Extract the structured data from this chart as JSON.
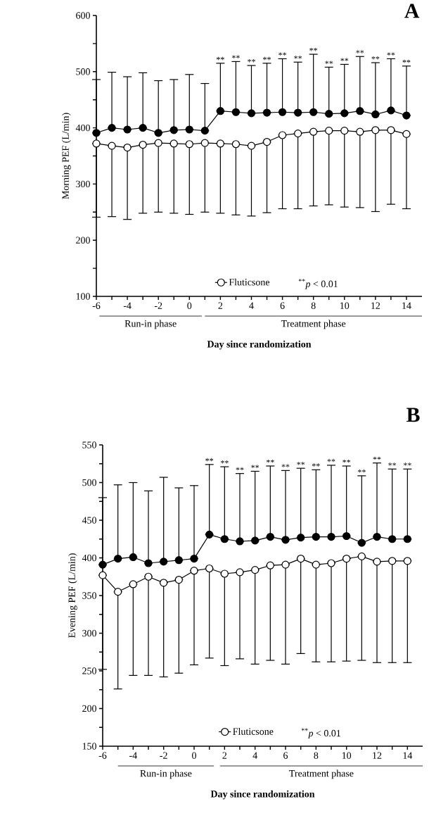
{
  "chart_data": [
    {
      "type": "line",
      "title": "A",
      "xlabel": "Day since randomization",
      "ylabel": "Morning PEF (L/min)",
      "marker": "circle",
      "line_style": "solid",
      "legend": "bottom",
      "x": [
        -6,
        -5,
        -4,
        -3,
        -2,
        -1,
        0,
        1,
        2,
        3,
        4,
        5,
        6,
        7,
        8,
        9,
        10,
        11,
        12,
        13,
        14
      ],
      "xlim": [
        -6,
        15
      ],
      "ylim": [
        100,
        600
      ],
      "xticks": [
        -6,
        {
          "value": -5,
          "label": null
        },
        -4,
        {
          "value": -3,
          "label": null
        },
        -2,
        {
          "value": -1,
          "label": null
        },
        0,
        {
          "value": 1,
          "label": null
        },
        2,
        {
          "value": 3,
          "label": null
        },
        4,
        {
          "value": 5,
          "label": null
        },
        6,
        {
          "value": 7,
          "label": null
        },
        8,
        {
          "value": 9,
          "label": null
        },
        10,
        {
          "value": 11,
          "label": null
        },
        12,
        {
          "value": 13,
          "label": null
        },
        14
      ],
      "yticks": [
        100,
        {
          "value": 150,
          "label": null
        },
        200,
        {
          "value": 250,
          "label": null
        },
        300,
        {
          "value": 350,
          "label": null
        },
        400,
        {
          "value": 450,
          "label": null
        },
        500,
        {
          "value": 550,
          "label": null
        },
        600
      ],
      "series": [
        {
          "color": "#000000",
          "values": [
            391,
            400,
            397,
            400,
            391,
            396,
            397,
            395,
            430,
            428,
            426,
            427,
            428,
            427,
            428,
            425,
            426,
            430,
            424,
            431,
            422
          ],
          "errors": [
            [
              391,
              486
            ],
            [
              400,
              499
            ],
            [
              397,
              491
            ],
            [
              400,
              498
            ],
            [
              391,
              484
            ],
            [
              396,
              486
            ],
            [
              397,
              495
            ],
            [
              395,
              479
            ],
            [
              430,
              515
            ],
            [
              428,
              518
            ],
            [
              426,
              511
            ],
            [
              427,
              515
            ],
            [
              428,
              523
            ],
            [
              427,
              517
            ],
            [
              428,
              531
            ],
            [
              425,
              508
            ],
            [
              426,
              513
            ],
            [
              430,
              527
            ],
            [
              424,
              516
            ],
            [
              431,
              523
            ],
            [
              422,
              510
            ]
          ]
        },
        {
          "name": "Fluticsone",
          "color": "#ffffff",
          "values": [
            372,
            368,
            365,
            370,
            373,
            372,
            371,
            373,
            372,
            371,
            368,
            375,
            387,
            390,
            393,
            395,
            395,
            393,
            396,
            396,
            389
          ],
          "errors": [
            [
              241,
              372
            ],
            [
              242,
              368
            ],
            [
              237,
              365
            ],
            [
              248,
              370
            ],
            [
              250,
              373
            ],
            [
              248,
              372
            ],
            [
              246,
              371
            ],
            [
              250,
              373
            ],
            [
              248,
              372
            ],
            [
              245,
              371
            ],
            [
              243,
              368
            ],
            [
              249,
              375
            ],
            [
              256,
              387
            ],
            [
              256,
              390
            ],
            [
              261,
              393
            ],
            [
              263,
              395
            ],
            [
              259,
              395
            ],
            [
              258,
              393
            ],
            [
              251,
              396
            ],
            [
              264,
              396
            ],
            [
              256,
              389
            ]
          ]
        }
      ],
      "annotations": [
        "$^{**}$*p* < 0.01",
        "Run-in phase",
        "Treatment phase",
        {
          "text": "**",
          "x": 2,
          "y": 515
        },
        {
          "text": "**",
          "x": 3,
          "y": 518
        },
        {
          "text": "**",
          "x": 4,
          "y": 511
        },
        {
          "text": "**",
          "x": 5,
          "y": 515
        },
        {
          "text": "**",
          "x": 6,
          "y": 523
        },
        {
          "text": "**",
          "x": 7,
          "y": 517
        },
        {
          "text": "**",
          "x": 8,
          "y": 531
        },
        {
          "text": "**",
          "x": 9,
          "y": 508
        },
        {
          "text": "**",
          "x": 10,
          "y": 513
        },
        {
          "text": "**",
          "x": 11,
          "y": 527
        },
        {
          "text": "**",
          "x": 12,
          "y": 516
        },
        {
          "text": "**",
          "x": 13,
          "y": 523
        },
        {
          "text": "**",
          "x": 14,
          "y": 510
        }
      ]
    },
    {
      "type": "line",
      "title": "B",
      "xlabel": "Day since randomization",
      "ylabel": "Evening PEF (L/min)",
      "marker": "circle",
      "line_style": "solid",
      "legend": "bottom",
      "x": [
        -6,
        -5,
        -4,
        -3,
        -2,
        -1,
        0,
        1,
        2,
        3,
        4,
        5,
        6,
        7,
        8,
        9,
        10,
        11,
        12,
        13,
        14
      ],
      "xlim": [
        -6,
        15
      ],
      "ylim": [
        150,
        550
      ],
      "xticks": [
        -6,
        {
          "value": -5,
          "label": null
        },
        -4,
        {
          "value": -3,
          "label": null
        },
        -2,
        {
          "value": -1,
          "label": null
        },
        0,
        {
          "value": 1,
          "label": null
        },
        2,
        {
          "value": 3,
          "label": null
        },
        4,
        {
          "value": 5,
          "label": null
        },
        6,
        {
          "value": 7,
          "label": null
        },
        8,
        {
          "value": 9,
          "label": null
        },
        10,
        {
          "value": 11,
          "label": null
        },
        12,
        {
          "value": 13,
          "label": null
        },
        14
      ],
      "yticks": [
        150,
        {
          "value": 175,
          "label": null
        },
        200,
        {
          "value": 225,
          "label": null
        },
        250,
        {
          "value": 275,
          "label": null
        },
        300,
        {
          "value": 325,
          "label": null
        },
        350,
        {
          "value": 375,
          "label": null
        },
        400,
        {
          "value": 425,
          "label": null
        },
        450,
        {
          "value": 475,
          "label": null
        },
        500,
        {
          "value": 525,
          "label": null
        },
        550
      ],
      "series": [
        {
          "color": "#000000",
          "values": [
            391,
            399,
            401,
            393,
            395,
            397,
            399,
            431,
            425,
            422,
            423,
            428,
            424,
            427,
            428,
            428,
            429,
            420,
            428,
            425,
            425
          ],
          "errors": [
            [
              391,
              480
            ],
            [
              399,
              497
            ],
            [
              401,
              500
            ],
            [
              393,
              489
            ],
            [
              395,
              507
            ],
            [
              397,
              493
            ],
            [
              399,
              496
            ],
            [
              431,
              524
            ],
            [
              425,
              521
            ],
            [
              422,
              512
            ],
            [
              423,
              515
            ],
            [
              428,
              522
            ],
            [
              424,
              516
            ],
            [
              427,
              519
            ],
            [
              428,
              517
            ],
            [
              428,
              523
            ],
            [
              429,
              522
            ],
            [
              420,
              509
            ],
            [
              428,
              526
            ],
            [
              425,
              518
            ],
            [
              425,
              518
            ]
          ]
        },
        {
          "name": "Fluticsone",
          "color": "#ffffff",
          "values": [
            377,
            355,
            365,
            375,
            367,
            371,
            383,
            386,
            379,
            381,
            384,
            390,
            391,
            399,
            391,
            393,
            399,
            402,
            395,
            396,
            396
          ],
          "errors": [
            [
              252,
              377
            ],
            [
              226,
              355
            ],
            [
              244,
              365
            ],
            [
              244,
              375
            ],
            [
              242,
              367
            ],
            [
              247,
              371
            ],
            [
              258,
              383
            ],
            [
              267,
              386
            ],
            [
              257,
              379
            ],
            [
              266,
              381
            ],
            [
              259,
              384
            ],
            [
              264,
              390
            ],
            [
              259,
              391
            ],
            [
              273,
              399
            ],
            [
              262,
              391
            ],
            [
              262,
              393
            ],
            [
              263,
              399
            ],
            [
              264,
              402
            ],
            [
              261,
              395
            ],
            [
              261,
              396
            ],
            [
              261,
              396
            ]
          ]
        }
      ],
      "annotations": [
        "$^{**}$*p* < 0.01",
        "Run-in phase",
        "Treatment phase",
        {
          "text": "**",
          "x": 1,
          "y": 524
        },
        {
          "text": "**",
          "x": 2,
          "y": 521
        },
        {
          "text": "**",
          "x": 3,
          "y": 512
        },
        {
          "text": "**",
          "x": 4,
          "y": 515
        },
        {
          "text": "**",
          "x": 5,
          "y": 522
        },
        {
          "text": "**",
          "x": 6,
          "y": 516
        },
        {
          "text": "**",
          "x": 7,
          "y": 519
        },
        {
          "text": "**",
          "x": 8,
          "y": 517
        },
        {
          "text": "**",
          "x": 9,
          "y": 523
        },
        {
          "text": "**",
          "x": 10,
          "y": 522
        },
        {
          "text": "**",
          "x": 11,
          "y": 509
        },
        {
          "text": "**",
          "x": 12,
          "y": 526
        },
        {
          "text": "**",
          "x": 13,
          "y": 518
        },
        {
          "text": "**",
          "x": 14,
          "y": 518
        }
      ]
    }
  ]
}
